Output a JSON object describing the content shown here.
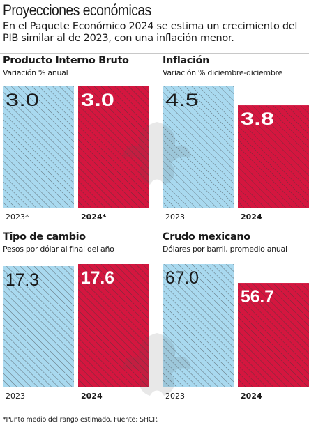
{
  "header": {
    "title": "Proyecciones económicas",
    "subtitle": "En el Paquete Económico 2024 se estima un crecimiento del PIB similar al de 2023, con una inflación menor."
  },
  "colors": {
    "bar_2023": "#a9d9ef",
    "bar_2024": "#d4163f",
    "hatch": "#3a3a3a"
  },
  "chart_data": [
    {
      "type": "bar",
      "title": "Producto Interno Bruto",
      "subtitle": "Variación % anual",
      "categories": [
        "2023*",
        "2024*"
      ],
      "values": [
        3.0,
        3.0
      ],
      "value_labels": [
        "3.0",
        "3.0"
      ],
      "ylim": [
        0,
        3.0
      ]
    },
    {
      "type": "bar",
      "title": "Inflación",
      "subtitle": "Variación % diciembre-diciembre",
      "categories": [
        "2023",
        "2024"
      ],
      "values": [
        4.5,
        3.8
      ],
      "value_labels": [
        "4.5",
        "3.8"
      ],
      "ylim": [
        0,
        4.5
      ]
    },
    {
      "type": "bar",
      "title": "Tipo de cambio",
      "subtitle": "Pesos por dólar al final del año",
      "categories": [
        "2023",
        "2024"
      ],
      "values": [
        17.3,
        17.6
      ],
      "value_labels": [
        "17.3",
        "17.6"
      ],
      "ylim": [
        0,
        17.6
      ]
    },
    {
      "type": "bar",
      "title": "Crudo mexicano",
      "subtitle": "Dólares por barril, promedio anual",
      "categories": [
        "2023",
        "2024"
      ],
      "values": [
        67.0,
        56.7
      ],
      "value_labels": [
        "67.0",
        "56.7"
      ],
      "ylim": [
        0,
        67.0
      ]
    }
  ],
  "footer": {
    "note": "*Punto medio del rango estimado. Fuente: SHCP."
  }
}
